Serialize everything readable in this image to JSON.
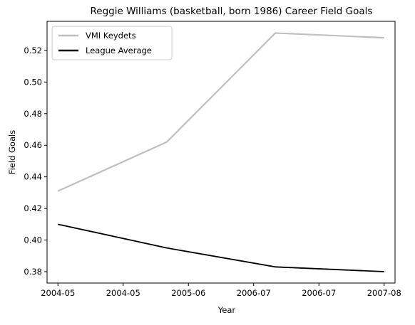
{
  "chart_data": {
    "type": "line",
    "title": "Reggie Williams (basketball, born 1986) Career Field Goals",
    "xlabel": "Year",
    "ylabel": "Field Goals",
    "x": [
      0,
      1,
      2,
      3
    ],
    "xlim": [
      -0.1,
      3.1
    ],
    "ylim": [
      0.3728,
      0.5384
    ],
    "xticks": [
      0,
      0.6,
      1.2,
      1.8,
      2.4,
      3.0
    ],
    "xtick_labels": [
      "2004-05",
      "2004-05",
      "2005-06",
      "2006-07",
      "2006-07",
      "2007-08"
    ],
    "yticks": [
      0.38,
      0.4,
      0.42,
      0.44,
      0.46,
      0.48,
      0.5,
      0.52
    ],
    "ytick_labels": [
      "0.38",
      "0.40",
      "0.42",
      "0.44",
      "0.46",
      "0.48",
      "0.50",
      "0.52"
    ],
    "grid": false,
    "legend_position": "top-left",
    "series": [
      {
        "name": "VMI Keydets",
        "values": [
          0.431,
          0.462,
          0.531,
          0.528
        ],
        "color": "#bfbfbf"
      },
      {
        "name": "League Average",
        "values": [
          0.41,
          0.395,
          0.383,
          0.38
        ],
        "color": "#000000"
      }
    ]
  }
}
